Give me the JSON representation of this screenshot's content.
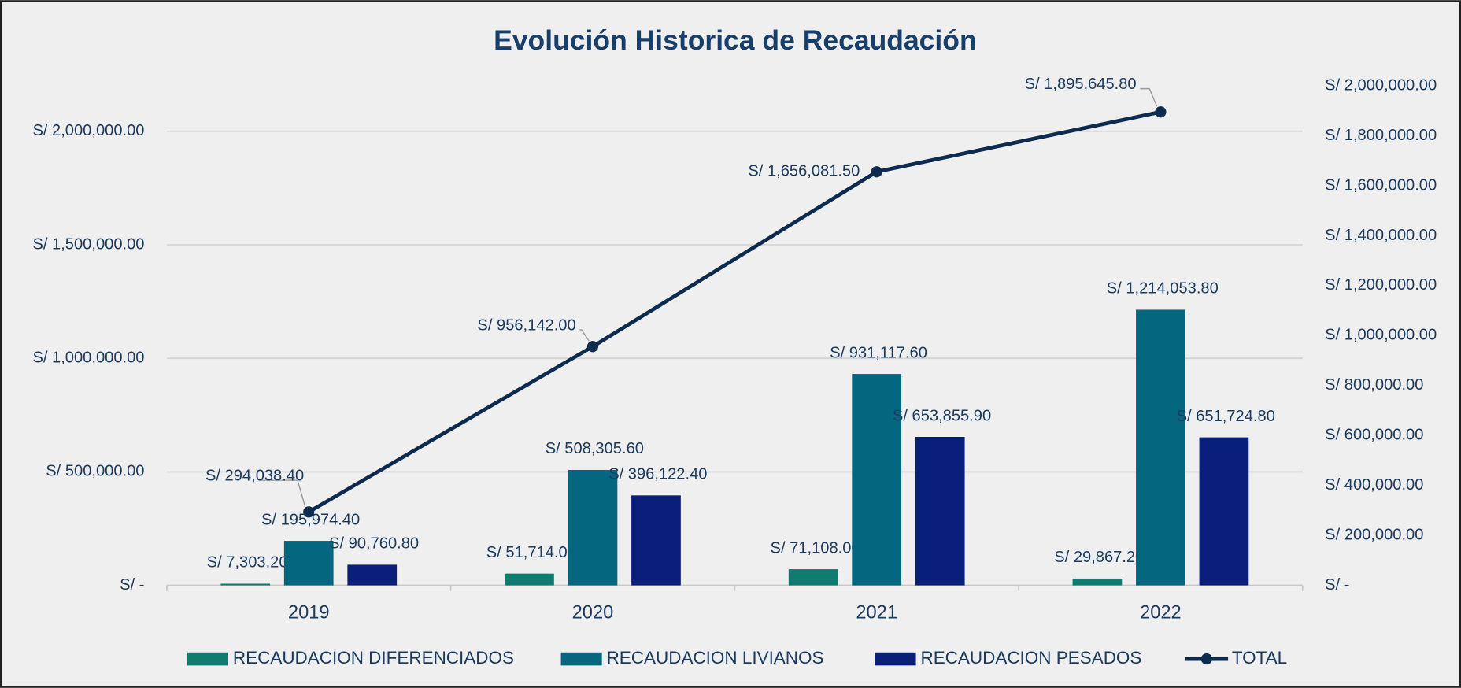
{
  "chart_data": {
    "type": "bar",
    "title": "Evolución Historica de Recaudación",
    "categories": [
      "2019",
      "2020",
      "2021",
      "2022"
    ],
    "series": [
      {
        "name": "RECAUDACION DIFERENCIADOS",
        "color": "#0e7c6f",
        "values": [
          7303.2,
          51714.0,
          71108.0,
          29867.2
        ],
        "value_labels": [
          "S/ 7,303.20",
          "S/ 51,714.00",
          "S/ 71,108.00",
          "S/ 29,867.20"
        ]
      },
      {
        "name": "RECAUDACION LIVIANOS",
        "color": "#05677f",
        "values": [
          195974.4,
          508305.6,
          931117.6,
          1214053.8
        ],
        "value_labels": [
          "S/ 195,974.40",
          "S/ 508,305.60",
          "S/ 931,117.60",
          "S/ 1,214,053.80"
        ]
      },
      {
        "name": "RECAUDACION PESADOS",
        "color": "#0a1f7a",
        "values": [
          90760.8,
          396122.4,
          653855.9,
          651724.8
        ],
        "value_labels": [
          "S/ 90,760.80",
          "S/ 396,122.40",
          "S/ 653,855.90",
          "S/ 651,724.80"
        ]
      },
      {
        "name": "TOTAL",
        "type": "line",
        "axis": "y2",
        "color": "#0d2b4e",
        "values": [
          294038.4,
          956142.0,
          1656081.5,
          1895645.8
        ],
        "value_labels": [
          "S/ 294,038.40",
          "S/ 956,142.00",
          "S/ 1,656,081.50",
          "S/ 1,895,645.80"
        ]
      }
    ],
    "ylim": [
      0,
      2200000
    ],
    "yticks": [
      {
        "value": 0,
        "label": "S/ -"
      },
      {
        "value": 500000,
        "label": "S/ 500,000.00"
      },
      {
        "value": 1000000,
        "label": "S/ 1,000,000.00"
      },
      {
        "value": 1500000,
        "label": "S/ 1,500,000.00"
      },
      {
        "value": 2000000,
        "label": "S/ 2,000,000.00"
      }
    ],
    "y2lim": [
      0,
      2000000
    ],
    "y2ticks": [
      {
        "value": 0,
        "label": "S/ -"
      },
      {
        "value": 200000,
        "label": "S/ 200,000.00"
      },
      {
        "value": 400000,
        "label": "S/ 400,000.00"
      },
      {
        "value": 600000,
        "label": "S/ 600,000.00"
      },
      {
        "value": 800000,
        "label": "S/ 800,000.00"
      },
      {
        "value": 1000000,
        "label": "S/ 1,000,000.00"
      },
      {
        "value": 1200000,
        "label": "S/ 1,200,000.00"
      },
      {
        "value": 1400000,
        "label": "S/ 1,400,000.00"
      },
      {
        "value": 1600000,
        "label": "S/ 1,600,000.00"
      },
      {
        "value": 1800000,
        "label": "S/ 1,800,000.00"
      },
      {
        "value": 2000000,
        "label": "S/ 2,000,000.00"
      }
    ],
    "grid": true,
    "legend": "bottom"
  }
}
